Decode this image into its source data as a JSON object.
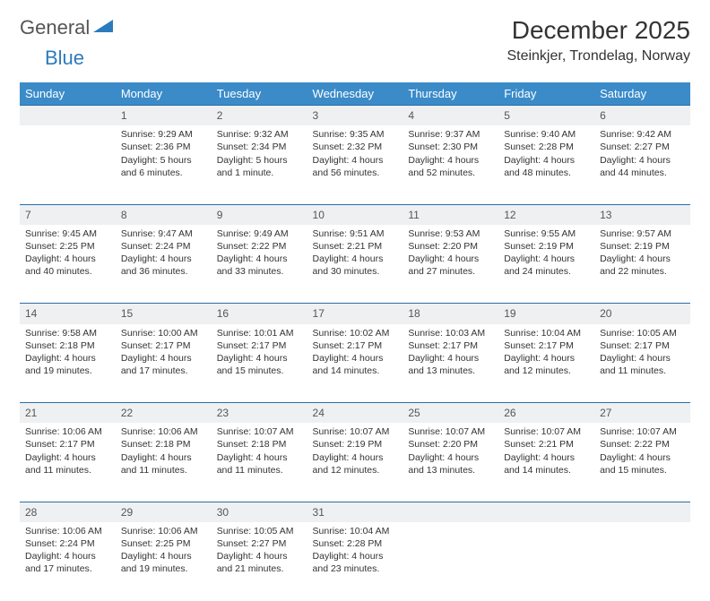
{
  "logo": {
    "text1": "General",
    "text2": "Blue"
  },
  "header": {
    "month_title": "December 2025",
    "location": "Steinkjer, Trondelag, Norway"
  },
  "colors": {
    "header_bg": "#3b8bc9",
    "header_text": "#ffffff",
    "daynum_bg": "#eef0f2",
    "row_border": "#2b6fa8",
    "logo_gray": "#555555",
    "logo_blue": "#2b7bbf"
  },
  "weekdays": [
    "Sunday",
    "Monday",
    "Tuesday",
    "Wednesday",
    "Thursday",
    "Friday",
    "Saturday"
  ],
  "weeks": [
    {
      "nums": [
        "",
        "1",
        "2",
        "3",
        "4",
        "5",
        "6"
      ],
      "cells": [
        {
          "sunrise": "",
          "sunset": "",
          "daylight": ""
        },
        {
          "sunrise": "Sunrise: 9:29 AM",
          "sunset": "Sunset: 2:36 PM",
          "daylight": "Daylight: 5 hours and 6 minutes."
        },
        {
          "sunrise": "Sunrise: 9:32 AM",
          "sunset": "Sunset: 2:34 PM",
          "daylight": "Daylight: 5 hours and 1 minute."
        },
        {
          "sunrise": "Sunrise: 9:35 AM",
          "sunset": "Sunset: 2:32 PM",
          "daylight": "Daylight: 4 hours and 56 minutes."
        },
        {
          "sunrise": "Sunrise: 9:37 AM",
          "sunset": "Sunset: 2:30 PM",
          "daylight": "Daylight: 4 hours and 52 minutes."
        },
        {
          "sunrise": "Sunrise: 9:40 AM",
          "sunset": "Sunset: 2:28 PM",
          "daylight": "Daylight: 4 hours and 48 minutes."
        },
        {
          "sunrise": "Sunrise: 9:42 AM",
          "sunset": "Sunset: 2:27 PM",
          "daylight": "Daylight: 4 hours and 44 minutes."
        }
      ]
    },
    {
      "nums": [
        "7",
        "8",
        "9",
        "10",
        "11",
        "12",
        "13"
      ],
      "cells": [
        {
          "sunrise": "Sunrise: 9:45 AM",
          "sunset": "Sunset: 2:25 PM",
          "daylight": "Daylight: 4 hours and 40 minutes."
        },
        {
          "sunrise": "Sunrise: 9:47 AM",
          "sunset": "Sunset: 2:24 PM",
          "daylight": "Daylight: 4 hours and 36 minutes."
        },
        {
          "sunrise": "Sunrise: 9:49 AM",
          "sunset": "Sunset: 2:22 PM",
          "daylight": "Daylight: 4 hours and 33 minutes."
        },
        {
          "sunrise": "Sunrise: 9:51 AM",
          "sunset": "Sunset: 2:21 PM",
          "daylight": "Daylight: 4 hours and 30 minutes."
        },
        {
          "sunrise": "Sunrise: 9:53 AM",
          "sunset": "Sunset: 2:20 PM",
          "daylight": "Daylight: 4 hours and 27 minutes."
        },
        {
          "sunrise": "Sunrise: 9:55 AM",
          "sunset": "Sunset: 2:19 PM",
          "daylight": "Daylight: 4 hours and 24 minutes."
        },
        {
          "sunrise": "Sunrise: 9:57 AM",
          "sunset": "Sunset: 2:19 PM",
          "daylight": "Daylight: 4 hours and 22 minutes."
        }
      ]
    },
    {
      "nums": [
        "14",
        "15",
        "16",
        "17",
        "18",
        "19",
        "20"
      ],
      "cells": [
        {
          "sunrise": "Sunrise: 9:58 AM",
          "sunset": "Sunset: 2:18 PM",
          "daylight": "Daylight: 4 hours and 19 minutes."
        },
        {
          "sunrise": "Sunrise: 10:00 AM",
          "sunset": "Sunset: 2:17 PM",
          "daylight": "Daylight: 4 hours and 17 minutes."
        },
        {
          "sunrise": "Sunrise: 10:01 AM",
          "sunset": "Sunset: 2:17 PM",
          "daylight": "Daylight: 4 hours and 15 minutes."
        },
        {
          "sunrise": "Sunrise: 10:02 AM",
          "sunset": "Sunset: 2:17 PM",
          "daylight": "Daylight: 4 hours and 14 minutes."
        },
        {
          "sunrise": "Sunrise: 10:03 AM",
          "sunset": "Sunset: 2:17 PM",
          "daylight": "Daylight: 4 hours and 13 minutes."
        },
        {
          "sunrise": "Sunrise: 10:04 AM",
          "sunset": "Sunset: 2:17 PM",
          "daylight": "Daylight: 4 hours and 12 minutes."
        },
        {
          "sunrise": "Sunrise: 10:05 AM",
          "sunset": "Sunset: 2:17 PM",
          "daylight": "Daylight: 4 hours and 11 minutes."
        }
      ]
    },
    {
      "nums": [
        "21",
        "22",
        "23",
        "24",
        "25",
        "26",
        "27"
      ],
      "cells": [
        {
          "sunrise": "Sunrise: 10:06 AM",
          "sunset": "Sunset: 2:17 PM",
          "daylight": "Daylight: 4 hours and 11 minutes."
        },
        {
          "sunrise": "Sunrise: 10:06 AM",
          "sunset": "Sunset: 2:18 PM",
          "daylight": "Daylight: 4 hours and 11 minutes."
        },
        {
          "sunrise": "Sunrise: 10:07 AM",
          "sunset": "Sunset: 2:18 PM",
          "daylight": "Daylight: 4 hours and 11 minutes."
        },
        {
          "sunrise": "Sunrise: 10:07 AM",
          "sunset": "Sunset: 2:19 PM",
          "daylight": "Daylight: 4 hours and 12 minutes."
        },
        {
          "sunrise": "Sunrise: 10:07 AM",
          "sunset": "Sunset: 2:20 PM",
          "daylight": "Daylight: 4 hours and 13 minutes."
        },
        {
          "sunrise": "Sunrise: 10:07 AM",
          "sunset": "Sunset: 2:21 PM",
          "daylight": "Daylight: 4 hours and 14 minutes."
        },
        {
          "sunrise": "Sunrise: 10:07 AM",
          "sunset": "Sunset: 2:22 PM",
          "daylight": "Daylight: 4 hours and 15 minutes."
        }
      ]
    },
    {
      "nums": [
        "28",
        "29",
        "30",
        "31",
        "",
        "",
        ""
      ],
      "cells": [
        {
          "sunrise": "Sunrise: 10:06 AM",
          "sunset": "Sunset: 2:24 PM",
          "daylight": "Daylight: 4 hours and 17 minutes."
        },
        {
          "sunrise": "Sunrise: 10:06 AM",
          "sunset": "Sunset: 2:25 PM",
          "daylight": "Daylight: 4 hours and 19 minutes."
        },
        {
          "sunrise": "Sunrise: 10:05 AM",
          "sunset": "Sunset: 2:27 PM",
          "daylight": "Daylight: 4 hours and 21 minutes."
        },
        {
          "sunrise": "Sunrise: 10:04 AM",
          "sunset": "Sunset: 2:28 PM",
          "daylight": "Daylight: 4 hours and 23 minutes."
        },
        {
          "sunrise": "",
          "sunset": "",
          "daylight": ""
        },
        {
          "sunrise": "",
          "sunset": "",
          "daylight": ""
        },
        {
          "sunrise": "",
          "sunset": "",
          "daylight": ""
        }
      ]
    }
  ]
}
